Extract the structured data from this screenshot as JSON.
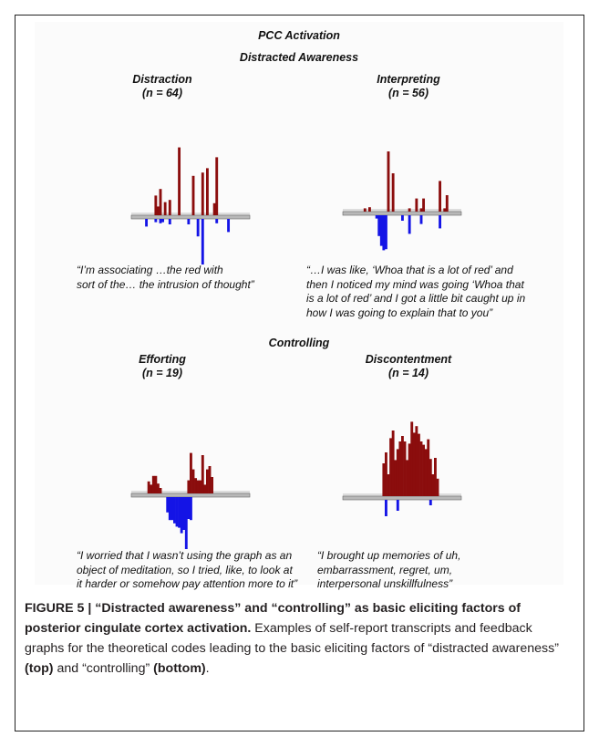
{
  "figure": {
    "title": "PCC Activation",
    "section1": "Distracted Awareness",
    "section2": "Controlling"
  },
  "panels": [
    {
      "name": "Distraction",
      "n_label": "(n = 64)",
      "quote": [
        "“I’m associating …the red with",
        "sort of the… the intrusion of thought”"
      ]
    },
    {
      "name": "Interpreting",
      "n_label": "(n = 56)",
      "quote": [
        "“…I was like, ‘Whoa that is a lot of red’ and",
        "then I noticed my mind was going ‘Whoa that",
        "is a lot of red’ and I got a little bit caught up in",
        "how I was going to explain that to you”"
      ]
    },
    {
      "name": "Efforting",
      "n_label": "(n = 19)",
      "quote": [
        "“I worried that I wasn’t using the graph as an",
        "object of meditation, so I tried, like, to look at",
        "it harder or somehow pay attention more to it”"
      ]
    },
    {
      "name": "Discontentment",
      "n_label": "(n = 14)",
      "quote": [
        "“I brought up memories of uh,",
        "embarrassment, regret, um,",
        "interpersonal unskillfulness”"
      ]
    }
  ],
  "caption": {
    "label": "FIGURE 5 | “Distracted awareness” and “controlling” as basic eliciting factors of posterior cingulate cortex activation.",
    "text1": " Examples of self-report transcripts and feedback graphs for the theoretical codes leading to the basic eliciting factors of “distracted awareness” ",
    "top": "(top)",
    "text2": " and “controlling” ",
    "bottom": "(bottom)",
    "end": "."
  },
  "colors": {
    "activation": "#8b0d0d",
    "deactivation": "#1414e6",
    "baseline": "#b8b8b8"
  },
  "chart_data": [
    {
      "type": "bar",
      "title": "Distraction (n = 64)",
      "activation": [
        0,
        0,
        0,
        0,
        0,
        0,
        1.8,
        0.8,
        2.4,
        0,
        1.2,
        0,
        1.4,
        0,
        0,
        0,
        6.2,
        0,
        0,
        0,
        0,
        0,
        3.6,
        0,
        0,
        0,
        3.9,
        0,
        4.3,
        0,
        0,
        1.1,
        5.3,
        0,
        0,
        0,
        0,
        0,
        0,
        0,
        0,
        0
      ],
      "deactivation": [
        0,
        0,
        0.7,
        0,
        0,
        0,
        0.3,
        0,
        0.4,
        0.3,
        0,
        0,
        0.5,
        0,
        0,
        0,
        0,
        0,
        0,
        0,
        0.5,
        0,
        0,
        0,
        1.6,
        0,
        4.6,
        0,
        0,
        0,
        0,
        0,
        0.4,
        0,
        0,
        0,
        0,
        1.2,
        0,
        0,
        0,
        0
      ]
    },
    {
      "type": "bar",
      "title": "Interpreting (n = 56)",
      "activation": [
        0,
        0,
        0,
        0,
        0,
        0.3,
        0,
        0.4,
        0,
        0,
        0,
        0,
        0,
        0,
        0,
        5.5,
        0,
        3.5,
        0,
        0,
        0,
        0,
        0,
        0,
        0.3,
        0,
        0,
        1.2,
        0,
        0.3,
        1.2,
        0,
        0,
        0,
        0,
        0,
        0,
        2.8,
        0,
        0.3,
        1.5,
        0
      ],
      "deactivation": [
        0,
        0,
        0,
        0,
        0,
        0,
        0,
        0,
        0,
        0,
        0.3,
        1.9,
        2.8,
        3.2,
        3.1,
        0,
        0,
        0,
        0,
        0,
        0,
        0.5,
        0,
        0,
        1.7,
        0,
        0,
        0,
        0,
        0.8,
        0,
        0,
        0,
        0,
        0,
        0,
        0,
        1.2,
        0,
        0,
        0,
        0
      ]
    },
    {
      "type": "bar",
      "title": "Efforting (n = 19)",
      "activation": [
        0,
        0,
        0,
        1.1,
        0.8,
        1.6,
        1.6,
        0.9,
        0.5,
        0,
        0,
        0,
        0,
        0,
        0,
        0,
        0,
        0,
        0,
        0,
        1.2,
        3.7,
        2.2,
        1.4,
        1.2,
        1.2,
        3.5,
        0.8,
        2.2,
        2.5,
        1.5,
        0,
        0,
        0,
        0,
        0,
        0,
        0,
        0,
        0,
        0,
        0
      ],
      "deactivation": [
        0,
        0,
        0,
        0,
        0,
        0,
        0,
        0,
        0,
        0,
        0,
        1.4,
        2.1,
        2.1,
        2.4,
        2.7,
        2.8,
        3.3,
        3.0,
        5.1,
        2.0,
        2.1,
        0,
        0,
        0,
        0,
        0,
        0,
        0,
        0,
        0,
        0,
        0,
        0,
        0,
        0,
        0,
        0,
        0,
        0,
        0,
        0
      ]
    },
    {
      "type": "bar",
      "title": "Discontentment (n = 14)",
      "activation": [
        0,
        0,
        0,
        0,
        0,
        0,
        0,
        0,
        0,
        0,
        0,
        0,
        0,
        3.0,
        4.0,
        2.0,
        5.3,
        6.0,
        3.3,
        4.3,
        5.0,
        5.5,
        5.0,
        3.3,
        4.8,
        6.8,
        5.8,
        6.4,
        5.7,
        5.0,
        4.7,
        4.3,
        5.2,
        3.4,
        2.0,
        3.5,
        1.6,
        0,
        0,
        0,
        0,
        0
      ],
      "deactivation": [
        0,
        0,
        0,
        0,
        0,
        0,
        0,
        0,
        0,
        0,
        0,
        0,
        0,
        0,
        1.5,
        0,
        0,
        0,
        0,
        1.0,
        0,
        0,
        0,
        0,
        0,
        0,
        0,
        0,
        0,
        0,
        0,
        0,
        0,
        0.5,
        0,
        0,
        0,
        0,
        0,
        0,
        0,
        0
      ]
    }
  ]
}
